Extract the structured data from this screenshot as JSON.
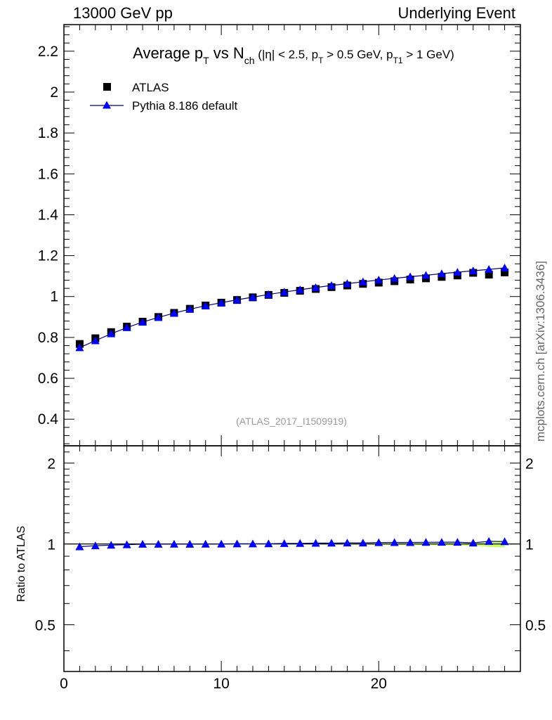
{
  "header": {
    "left": "13000 GeV pp",
    "right": "Underlying Event"
  },
  "side_label": "mcplots.cern.ch [arXiv:1306.3436]",
  "ratio_ylabel": "Ratio to ATLAS",
  "colors": {
    "data": "#000000",
    "mc": "#0000ff",
    "mc_line": "#000080",
    "band": "#ccff66"
  },
  "chart_data": [
    {
      "type": "scatter",
      "title": {
        "main": "Average p",
        "main_sub": "T",
        "vs": " vs N",
        "vs_sub": "ch",
        "cuts": " (|η| < 2.5, p",
        "cuts_sub1": "T",
        "cuts_mid": " > 0.5 GeV, p",
        "cuts_sub2": "T1",
        "cuts_end": " > 1 GeV)"
      },
      "analysis_tag": "(ATLAS_2017_I1509919)",
      "xlim": [
        0,
        29
      ],
      "ylim": [
        0.27,
        2.33
      ],
      "yticks": [
        0.4,
        0.6,
        0.8,
        1,
        1.2,
        1.4,
        1.6,
        1.8,
        2,
        2.2
      ],
      "ytick_labels": [
        "0.4",
        "0.6",
        "0.8",
        "1",
        "1.2",
        "1.4",
        "1.6",
        "1.8",
        "2",
        "2.2"
      ],
      "x": [
        1,
        2,
        3,
        4,
        5,
        6,
        7,
        8,
        9,
        10,
        11,
        12,
        13,
        14,
        15,
        16,
        17,
        18,
        19,
        20,
        21,
        22,
        23,
        24,
        25,
        26,
        27,
        28
      ],
      "legend_position": "top-left",
      "series": [
        {
          "name": "ATLAS",
          "marker": "square",
          "values": [
            0.768,
            0.796,
            0.826,
            0.853,
            0.877,
            0.9,
            0.92,
            0.94,
            0.956,
            0.97,
            0.983,
            0.996,
            1.008,
            1.018,
            1.028,
            1.037,
            1.046,
            1.054,
            1.062,
            1.068,
            1.075,
            1.083,
            1.089,
            1.096,
            1.103,
            1.116,
            1.107,
            1.118
          ]
        },
        {
          "name": "Pythia 8.186 default",
          "marker": "triangle",
          "values": [
            0.75,
            0.784,
            0.818,
            0.848,
            0.875,
            0.898,
            0.919,
            0.938,
            0.955,
            0.97,
            0.984,
            0.997,
            1.01,
            1.022,
            1.033,
            1.044,
            1.054,
            1.063,
            1.072,
            1.081,
            1.089,
            1.097,
            1.104,
            1.112,
            1.119,
            1.126,
            1.133,
            1.14
          ]
        }
      ]
    },
    {
      "type": "line",
      "ylabel": "Ratio to ATLAS",
      "xlim": [
        0,
        29
      ],
      "ylim": [
        0.335,
        2.32
      ],
      "yscale": "log",
      "xticks": [
        0,
        10,
        20
      ],
      "xtick_labels": [
        "0",
        "10",
        "20"
      ],
      "yticks": [
        0.5,
        1,
        2
      ],
      "ytick_labels": [
        "0.5",
        "1",
        "2"
      ],
      "x": [
        1,
        2,
        3,
        4,
        5,
        6,
        7,
        8,
        9,
        10,
        11,
        12,
        13,
        14,
        15,
        16,
        17,
        18,
        19,
        20,
        21,
        22,
        23,
        24,
        25,
        26,
        27,
        28
      ],
      "series": [
        {
          "name": "Pythia 8.186 default",
          "values": [
            0.977,
            0.985,
            0.99,
            0.994,
            0.998,
            0.998,
            0.999,
            0.998,
            0.999,
            1.0,
            1.001,
            1.001,
            1.002,
            1.004,
            1.005,
            1.007,
            1.008,
            1.009,
            1.009,
            1.012,
            1.013,
            1.013,
            1.014,
            1.015,
            1.015,
            1.009,
            1.023,
            1.02
          ]
        }
      ],
      "band_halfwidth": [
        0.005,
        0.004,
        0.004,
        0.004,
        0.004,
        0.004,
        0.004,
        0.004,
        0.005,
        0.005,
        0.005,
        0.005,
        0.005,
        0.006,
        0.006,
        0.006,
        0.007,
        0.007,
        0.008,
        0.008,
        0.009,
        0.01,
        0.011,
        0.012,
        0.013,
        0.015,
        0.025,
        0.03
      ]
    }
  ]
}
